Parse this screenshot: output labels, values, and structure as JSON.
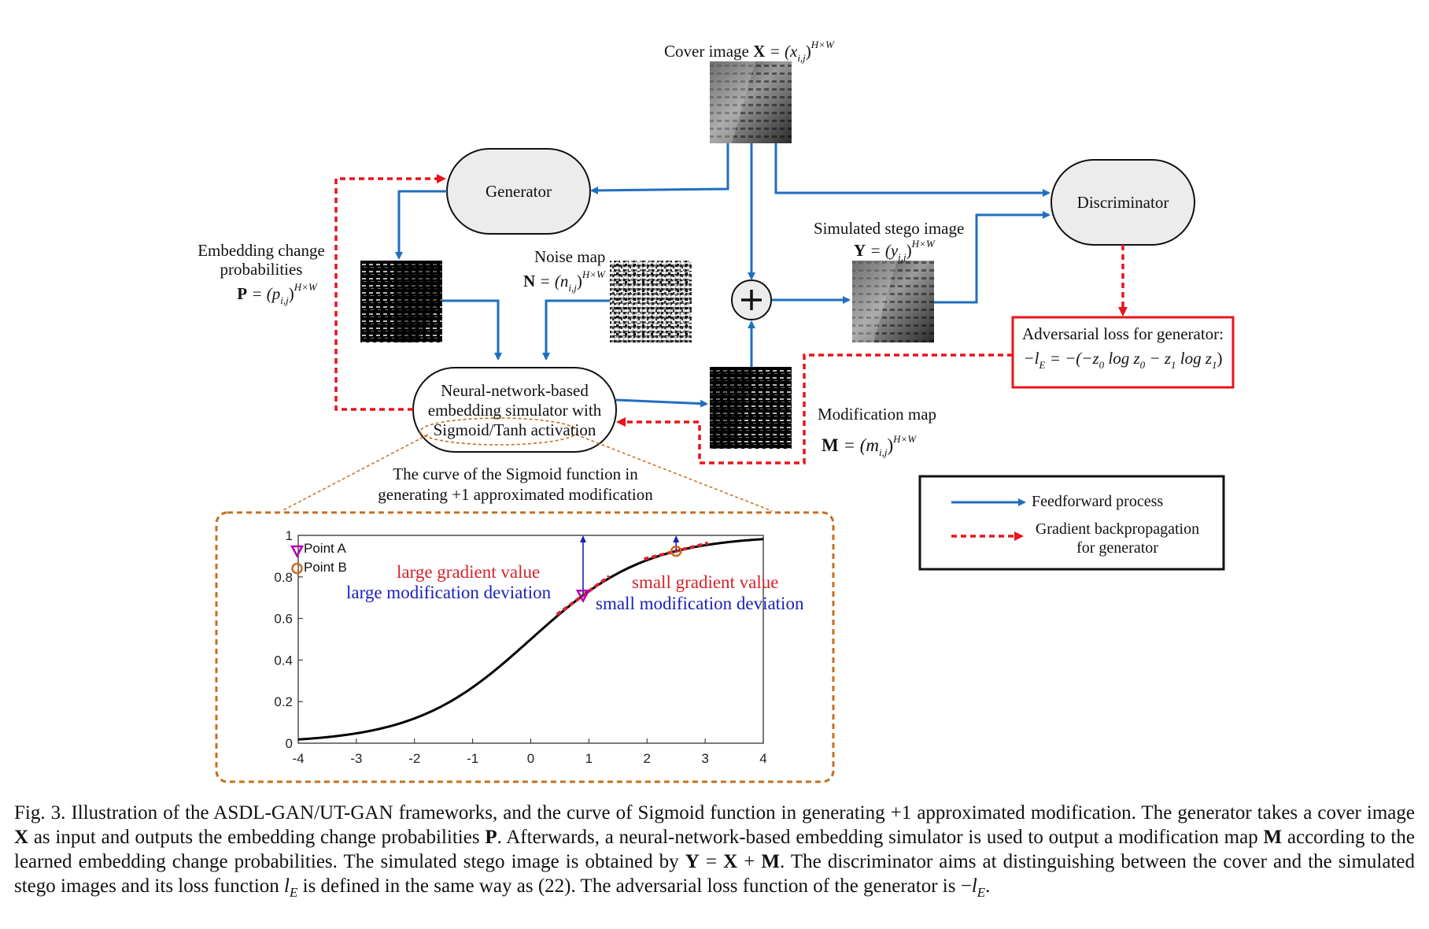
{
  "cover_image": {
    "label": "Cover image ",
    "symbol": "X",
    "formula": " = (x",
    "sub": "i,j",
    "close": ")",
    "sup": "H×W"
  },
  "generator": {
    "label": "Generator"
  },
  "discriminator": {
    "label": "Discriminator"
  },
  "embedding_probabilities": {
    "line1": "Embedding change",
    "line2": "probabilities",
    "symbol": "P",
    "formula": " = (p",
    "sub": "i,j",
    "close": ")",
    "sup": "H×W"
  },
  "noise_map": {
    "line1": "Noise map",
    "symbol": "N",
    "formula": " = (n",
    "sub": "i,j",
    "close": ")",
    "sup": "H×W"
  },
  "simulated_stego": {
    "line1": "Simulated stego image",
    "symbol": "Y",
    "formula": " = (y",
    "sub": "i,j",
    "close": ")",
    "sup": "H×W"
  },
  "modification_map": {
    "line1": "Modification map",
    "symbol": "M",
    "formula": " = (m",
    "sub": "i,j",
    "close": ")",
    "sup": "H×W"
  },
  "simulator": {
    "line1": "Neural-network-based",
    "line2": "embedding simulator with",
    "line3": "Sigmoid/Tanh activation"
  },
  "adversarial_loss": {
    "line1": "Adversarial loss for generator:",
    "formula": "−l_E = −(−z′₀ log z₀ − z′₁ log z₁)",
    "f_minus": "−l",
    "f_sub_e": "E",
    "f_eq": " = −(−z",
    "f_sup_a": "'",
    "f_sub_0": "0",
    "f_log0": " log z",
    "f_sub_0b": "0",
    "f_minus2": " − z",
    "f_sup_b": "'",
    "f_sub_1": "1",
    "f_log1": " log z",
    "f_sub_1b": "1",
    "f_close": ")"
  },
  "plus_symbol": "+",
  "chart_caption": {
    "line1": "The curve of the Sigmoid function in",
    "line2": "generating +1 approximated modification"
  },
  "legend": {
    "feedforward": "Feedforward process",
    "backprop_line1": "Gradient backpropagation",
    "backprop_line2": "for generator"
  },
  "colors": {
    "feedforward": "#1f6fc0",
    "backprop": "#e8141b",
    "chart_frame": "#c5701f",
    "box_fill": "#ececec",
    "point_a": "#b000b0",
    "point_b": "#c96a1e",
    "annot_red": "#d4232b",
    "annot_blue": "#1b22b5"
  },
  "chart_data": {
    "type": "line",
    "function": "sigmoid",
    "x": [
      -4,
      -3.5,
      -3,
      -2.5,
      -2,
      -1.5,
      -1,
      -0.5,
      0,
      0.5,
      1,
      1.5,
      2,
      2.5,
      3,
      3.5,
      4
    ],
    "y": [
      0.018,
      0.029,
      0.047,
      0.076,
      0.119,
      0.182,
      0.269,
      0.378,
      0.5,
      0.622,
      0.731,
      0.818,
      0.881,
      0.924,
      0.953,
      0.971,
      0.982
    ],
    "xlim": [
      -4,
      4
    ],
    "ylim": [
      0,
      1
    ],
    "xticks": [
      "-4",
      "-3",
      "-2",
      "-1",
      "0",
      "1",
      "2",
      "3",
      "4"
    ],
    "yticks": [
      "0",
      "0.2",
      "0.4",
      "0.6",
      "0.8",
      "1"
    ],
    "points": [
      {
        "name": "Point A",
        "x": 0.9,
        "y": 0.711
      },
      {
        "name": "Point B",
        "x": 2.5,
        "y": 0.924
      }
    ],
    "annotations": {
      "large_gradient": "large gradient value",
      "large_deviation": "large modification deviation",
      "small_gradient": "small gradient value",
      "small_deviation": "small modification deviation"
    }
  },
  "caption": {
    "p1": "Fig. 3.   Illustration of the ASDL-GAN/UT-GAN frameworks, and the curve of Sigmoid function in generating +1 approximated modification. The generator takes a cover image ",
    "X": "X",
    "p2": " as input and outputs the embedding change probabilities ",
    "P": "P",
    "p3": ". Afterwards, a neural-network-based embedding simulator is used to output a modification map ",
    "M": "M",
    "p4": " according to the learned embedding change probabilities. The simulated stego image is obtained by ",
    "Y": "Y",
    "eq1": " = ",
    "X2": "X",
    "plus": " + ",
    "M2": "M",
    "p5": ". The discriminator aims at distinguishing between the cover and the simulated stego images and its loss function ",
    "lE": "l",
    "lE_sub": "E",
    "p6": " is defined in the same way as (22). The adversarial loss function of the generator is −",
    "lE2": "l",
    "lE2_sub": "E",
    "p7": "."
  }
}
